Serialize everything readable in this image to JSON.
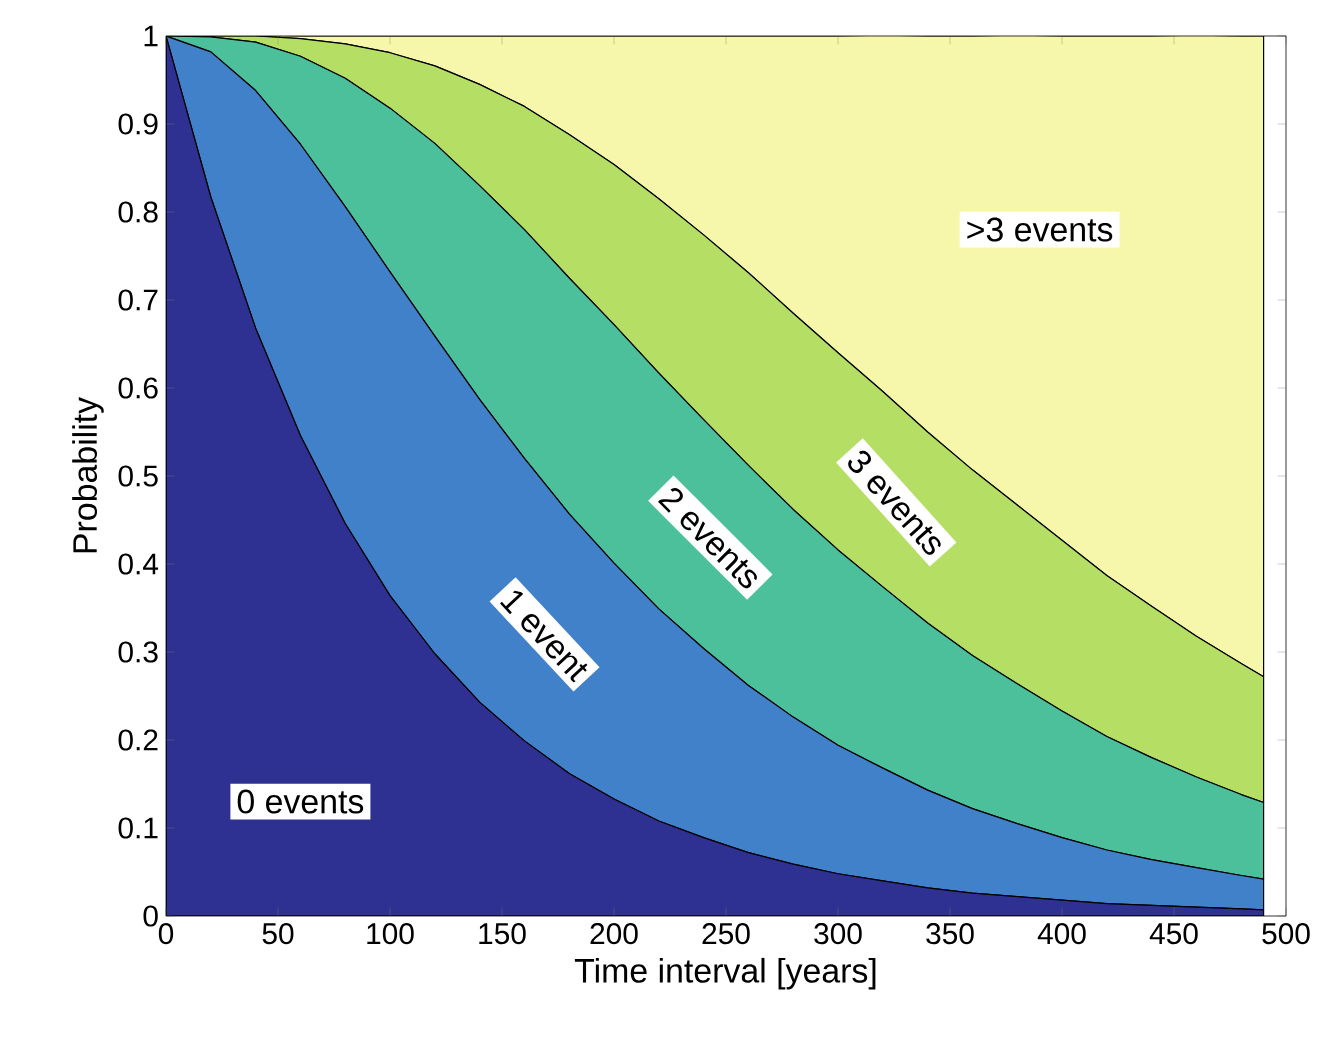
{
  "chart_data": {
    "type": "area",
    "stacked": true,
    "xlabel": "Time interval [years]",
    "ylabel": "Probability",
    "x": [
      0,
      20,
      40,
      60,
      80,
      100,
      120,
      140,
      160,
      180,
      200,
      220,
      240,
      260,
      280,
      300,
      320,
      340,
      360,
      380,
      400,
      420,
      440,
      460,
      480,
      490
    ],
    "series": [
      {
        "name": "0 events",
        "color": "#2e3192",
        "values": [
          1,
          0.817,
          0.668,
          0.546,
          0.446,
          0.364,
          0.298,
          0.243,
          0.199,
          0.162,
          0.133,
          0.108,
          0.089,
          0.072,
          0.059,
          0.048,
          0.04,
          0.032,
          0.026,
          0.022,
          0.018,
          0.014,
          0.012,
          0.01,
          0.008,
          0.007
        ]
      },
      {
        "name": "1 event",
        "color": "#4181c9",
        "values": [
          0,
          0.165,
          0.27,
          0.331,
          0.36,
          0.368,
          0.361,
          0.344,
          0.321,
          0.295,
          0.268,
          0.241,
          0.215,
          0.19,
          0.167,
          0.146,
          0.128,
          0.111,
          0.096,
          0.083,
          0.071,
          0.061,
          0.052,
          0.045,
          0.038,
          0.035
        ]
      },
      {
        "name": "2 events",
        "color": "#4bc09a",
        "values": [
          0,
          0.017,
          0.055,
          0.1,
          0.146,
          0.186,
          0.219,
          0.243,
          0.26,
          0.268,
          0.271,
          0.268,
          0.26,
          0.25,
          0.236,
          0.222,
          0.206,
          0.19,
          0.174,
          0.159,
          0.144,
          0.129,
          0.116,
          0.103,
          0.092,
          0.087
        ]
      },
      {
        "name": "3 events",
        "color": "#b5de64",
        "values": [
          0,
          0.001,
          0.007,
          0.02,
          0.039,
          0.063,
          0.088,
          0.115,
          0.14,
          0.163,
          0.182,
          0.198,
          0.21,
          0.219,
          0.223,
          0.224,
          0.222,
          0.217,
          0.211,
          0.203,
          0.194,
          0.183,
          0.172,
          0.16,
          0.149,
          0.143
        ]
      },
      {
        "name": ">3 events",
        "color": "#f7f7ab",
        "values": [
          0,
          0,
          0.001,
          0.003,
          0.009,
          0.019,
          0.034,
          0.055,
          0.08,
          0.112,
          0.146,
          0.185,
          0.226,
          0.269,
          0.315,
          0.36,
          0.405,
          0.45,
          0.493,
          0.534,
          0.573,
          0.613,
          0.648,
          0.683,
          0.713,
          0.728
        ]
      }
    ],
    "xlim": [
      0,
      500
    ],
    "ylim": [
      0,
      1
    ],
    "xticks": [
      0,
      50,
      100,
      150,
      200,
      250,
      300,
      350,
      400,
      450,
      500
    ],
    "yticks": [
      0,
      0.1,
      0.2,
      0.3,
      0.4,
      0.5,
      0.6,
      0.7,
      0.8,
      0.9,
      1
    ],
    "legend": false,
    "grid": false
  }
}
